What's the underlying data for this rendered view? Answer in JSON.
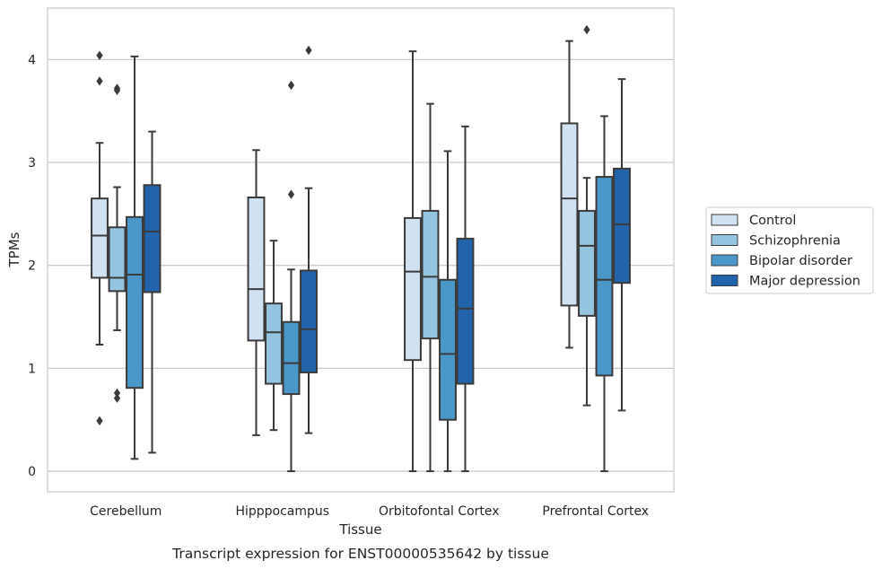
{
  "caption": "Transcript expression for ENST00000535642 by tissue",
  "chart_data": {
    "type": "box",
    "title": "",
    "xlabel": "Tissue",
    "ylabel": "TPMs",
    "ylim": [
      -0.2,
      4.5
    ],
    "yticks": [
      "0",
      "1",
      "2",
      "3",
      "4"
    ],
    "grid": "horizontal",
    "legend_position": "right",
    "categories": [
      "Cerebellum",
      "Hipppocampus",
      "Orbitofontal Cortex",
      "Prefrontal Cortex"
    ],
    "series": [
      {
        "name": "Control",
        "color": "#d0e1f2",
        "boxes": [
          {
            "whisker_low": 1.23,
            "q1": 1.88,
            "median": 2.29,
            "q3": 2.65,
            "whisker_high": 3.19,
            "outliers": [
              4.04,
              3.79,
              0.49
            ]
          },
          {
            "whisker_low": 0.35,
            "q1": 1.27,
            "median": 1.77,
            "q3": 2.66,
            "whisker_high": 3.12,
            "outliers": []
          },
          {
            "whisker_low": 0.0,
            "q1": 1.08,
            "median": 1.94,
            "q3": 2.46,
            "whisker_high": 4.08,
            "outliers": []
          },
          {
            "whisker_low": 1.2,
            "q1": 1.61,
            "median": 2.65,
            "q3": 3.38,
            "whisker_high": 4.18,
            "outliers": []
          }
        ]
      },
      {
        "name": "Schizophrenia",
        "color": "#94c4df",
        "boxes": [
          {
            "whisker_low": 1.37,
            "q1": 1.75,
            "median": 1.88,
            "q3": 2.37,
            "whisker_high": 2.76,
            "outliers": [
              3.72,
              3.7,
              0.76,
              0.71
            ]
          },
          {
            "whisker_low": 0.4,
            "q1": 0.85,
            "median": 1.35,
            "q3": 1.63,
            "whisker_high": 2.24,
            "outliers": []
          },
          {
            "whisker_low": 0.0,
            "q1": 1.29,
            "median": 1.89,
            "q3": 2.53,
            "whisker_high": 3.57,
            "outliers": []
          },
          {
            "whisker_low": 0.64,
            "q1": 1.51,
            "median": 2.19,
            "q3": 2.53,
            "whisker_high": 2.85,
            "outliers": [
              4.29
            ]
          }
        ]
      },
      {
        "name": "Bipolar disorder",
        "color": "#4a98c9",
        "boxes": [
          {
            "whisker_low": 0.12,
            "q1": 0.81,
            "median": 1.91,
            "q3": 2.47,
            "whisker_high": 4.03,
            "outliers": []
          },
          {
            "whisker_low": 0.0,
            "q1": 0.75,
            "median": 1.05,
            "q3": 1.45,
            "whisker_high": 1.96,
            "outliers": [
              3.75,
              2.69
            ]
          },
          {
            "whisker_low": 0.0,
            "q1": 0.5,
            "median": 1.14,
            "q3": 1.86,
            "whisker_high": 3.11,
            "outliers": []
          },
          {
            "whisker_low": 0.0,
            "q1": 0.93,
            "median": 1.86,
            "q3": 2.86,
            "whisker_high": 3.45,
            "outliers": []
          }
        ]
      },
      {
        "name": "Major depression",
        "color": "#2164ab",
        "boxes": [
          {
            "whisker_low": 0.18,
            "q1": 1.74,
            "median": 2.33,
            "q3": 2.78,
            "whisker_high": 3.3,
            "outliers": []
          },
          {
            "whisker_low": 0.37,
            "q1": 0.96,
            "median": 1.38,
            "q3": 1.95,
            "whisker_high": 2.75,
            "outliers": [
              4.09
            ]
          },
          {
            "whisker_low": 0.0,
            "q1": 0.85,
            "median": 1.58,
            "q3": 2.26,
            "whisker_high": 3.35,
            "outliers": []
          },
          {
            "whisker_low": 0.59,
            "q1": 1.83,
            "median": 2.4,
            "q3": 2.94,
            "whisker_high": 3.81,
            "outliers": []
          }
        ]
      }
    ]
  }
}
